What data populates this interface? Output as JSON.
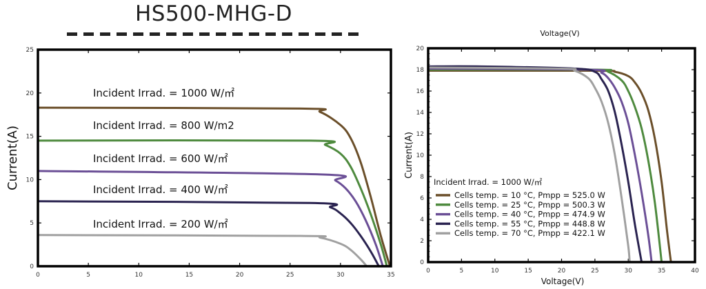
{
  "title": "HS500-MHG-D",
  "chart_data": [
    {
      "type": "line",
      "title": "",
      "xlabel": "",
      "ylabel": "Current(A)",
      "xlim": [
        0,
        35
      ],
      "ylim": [
        0,
        25
      ],
      "xticks": [
        "0",
        "5",
        "10",
        "15",
        "20",
        "25",
        "30",
        "35"
      ],
      "yticks": [
        "0",
        "5",
        "10",
        "15",
        "20",
        "25"
      ],
      "grid": false,
      "series": [
        {
          "name": "Incident Irrad. = 1000 W/㎡",
          "color": "#6b4f2a",
          "points": [
            [
              0,
              18.3
            ],
            [
              26,
              18.2
            ],
            [
              28,
              17.8
            ],
            [
              30,
              16.3
            ],
            [
              31,
              14.8
            ],
            [
              32,
              12
            ],
            [
              33,
              8
            ],
            [
              34,
              3.5
            ],
            [
              34.9,
              0
            ]
          ]
        },
        {
          "name": "Incident Irrad. = 800 W/m2",
          "color": "#4e8a3e",
          "points": [
            [
              0,
              14.5
            ],
            [
              27,
              14.5
            ],
            [
              28.5,
              14
            ],
            [
              30,
              13
            ],
            [
              31,
              11.5
            ],
            [
              32,
              9
            ],
            [
              33,
              6
            ],
            [
              34,
              2.5
            ],
            [
              34.6,
              0
            ]
          ]
        },
        {
          "name": "Incident Irrad. = 600 W/㎡",
          "color": "#6b4f96",
          "points": [
            [
              0,
              11
            ],
            [
              28,
              10.6
            ],
            [
              29.5,
              9.9
            ],
            [
              30.5,
              9
            ],
            [
              31.5,
              7.5
            ],
            [
              32.5,
              5.3
            ],
            [
              33.5,
              2.5
            ],
            [
              34.2,
              0
            ]
          ]
        },
        {
          "name": "Incident Irrad. = 400 W/㎡",
          "color": "#2a2350",
          "points": [
            [
              0,
              7.5
            ],
            [
              27,
              7.3
            ],
            [
              29,
              6.8
            ],
            [
              30,
              6.1
            ],
            [
              31,
              5
            ],
            [
              32,
              3.5
            ],
            [
              33,
              1.7
            ],
            [
              33.8,
              0
            ]
          ]
        },
        {
          "name": "Incident Irrad. = 200 W/㎡",
          "color": "#a0a0a0",
          "points": [
            [
              0,
              3.6
            ],
            [
              26,
              3.5
            ],
            [
              28,
              3.3
            ],
            [
              30,
              2.6
            ],
            [
              31,
              1.9
            ],
            [
              32,
              0.8
            ],
            [
              32.6,
              0
            ]
          ]
        }
      ]
    },
    {
      "type": "line",
      "title": "Voltage(V)",
      "xlabel": "Voltage(V)",
      "ylabel": "Current(A)",
      "xlim": [
        0,
        40
      ],
      "ylim": [
        0,
        20
      ],
      "xticks": [
        "0",
        "5",
        "10",
        "15",
        "20",
        "25",
        "30",
        "35",
        "40"
      ],
      "yticks": [
        "0",
        "2",
        "4",
        "6",
        "8",
        "10",
        "12",
        "14",
        "16",
        "18",
        "20"
      ],
      "grid": false,
      "legend_title": "Incident Irrad. = 1000 W/㎡",
      "legend_position": "bottom-left",
      "series": [
        {
          "name": "Cells temp. = 10 °C,  Pmpp = 525.0 W",
          "color": "#6b4f2a",
          "points": [
            [
              0,
              17.9
            ],
            [
              25,
              17.9
            ],
            [
              28,
              17.8
            ],
            [
              30,
              17.4
            ],
            [
              31,
              16.8
            ],
            [
              32,
              15.8
            ],
            [
              33,
              14.2
            ],
            [
              34,
              11.5
            ],
            [
              35,
              7.5
            ],
            [
              35.8,
              3
            ],
            [
              36.4,
              0
            ]
          ]
        },
        {
          "name": "Cells temp. = 25 °C,  Pmpp = 500.3 W",
          "color": "#4e8a3e",
          "points": [
            [
              0,
              18.0
            ],
            [
              25,
              18
            ],
            [
              27,
              17.8
            ],
            [
              29,
              17
            ],
            [
              30,
              16
            ],
            [
              31,
              14.5
            ],
            [
              32,
              12.5
            ],
            [
              33,
              9.5
            ],
            [
              34,
              5.5
            ],
            [
              35,
              0
            ]
          ]
        },
        {
          "name": "Cells temp. = 40 °C,  Pmpp = 474.9 W",
          "color": "#6b4f96",
          "points": [
            [
              0,
              18.1
            ],
            [
              24,
              18.0
            ],
            [
              26,
              17.7
            ],
            [
              27,
              17.2
            ],
            [
              28,
              16.3
            ],
            [
              29,
              15
            ],
            [
              30,
              13
            ],
            [
              31,
              10
            ],
            [
              32,
              6.5
            ],
            [
              33,
              2.5
            ],
            [
              33.5,
              0
            ]
          ]
        },
        {
          "name": "Cells temp. = 55 °C,  Pmpp = 448.8 W",
          "color": "#2a2350",
          "points": [
            [
              0,
              18.3
            ],
            [
              8,
              18.3
            ],
            [
              22,
              18.1
            ],
            [
              25,
              17.8
            ],
            [
              26,
              17.1
            ],
            [
              27,
              16
            ],
            [
              28,
              14
            ],
            [
              29,
              11
            ],
            [
              30,
              7.5
            ],
            [
              31,
              3.5
            ],
            [
              32,
              0
            ]
          ]
        },
        {
          "name": "Cells temp. = 70 °C,  Pmpp = 422.1 W",
          "color": "#a0a0a0",
          "points": [
            [
              0,
              18.2
            ],
            [
              20,
              18.1
            ],
            [
              22,
              17.9
            ],
            [
              24,
              17.2
            ],
            [
              25,
              16.3
            ],
            [
              26,
              15
            ],
            [
              27,
              13
            ],
            [
              28,
              10
            ],
            [
              29,
              6
            ],
            [
              30,
              1.5
            ],
            [
              30.2,
              0
            ]
          ]
        }
      ]
    }
  ]
}
